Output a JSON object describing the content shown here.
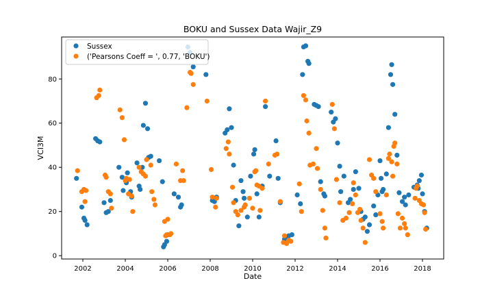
{
  "chart_data": {
    "type": "scatter",
    "title": "BOKU and Sussex Data Wajir_Z9",
    "xlabel": "Date",
    "ylabel": "VCI3M",
    "xlim": [
      2001.0,
      2019.0
    ],
    "ylim": [
      -1.5,
      99
    ],
    "x_ticks": [
      2002,
      2004,
      2006,
      2008,
      2010,
      2012,
      2014,
      2016,
      2018
    ],
    "x_tick_labels": [
      "2002",
      "2004",
      "2006",
      "2008",
      "2010",
      "2012",
      "2014",
      "2016",
      "2018"
    ],
    "y_ticks": [
      0,
      20,
      40,
      60,
      80
    ],
    "y_tick_labels": [
      "0",
      "20",
      "40",
      "60",
      "80"
    ],
    "grid": false,
    "legend_position": "top-left",
    "series": [
      {
        "name": "Sussex",
        "color": "#1f77b4",
        "points": [
          [
            2001.7,
            35
          ],
          [
            2001.95,
            22
          ],
          [
            2002.05,
            17
          ],
          [
            2002.1,
            16
          ],
          [
            2002.2,
            14
          ],
          [
            2002.6,
            53
          ],
          [
            2002.7,
            52
          ],
          [
            2002.8,
            51.5
          ],
          [
            2003.0,
            24
          ],
          [
            2003.1,
            19.5
          ],
          [
            2003.2,
            20
          ],
          [
            2003.3,
            25
          ],
          [
            2003.7,
            40
          ],
          [
            2003.85,
            35.5
          ],
          [
            2003.9,
            29.5
          ],
          [
            2004.05,
            33
          ],
          [
            2004.1,
            37.5
          ],
          [
            2004.25,
            29
          ],
          [
            2004.3,
            26.5
          ],
          [
            2004.55,
            42
          ],
          [
            2004.65,
            31.5
          ],
          [
            2004.7,
            30
          ],
          [
            2004.8,
            40
          ],
          [
            2004.85,
            59
          ],
          [
            2004.95,
            69
          ],
          [
            2005.05,
            57.5
          ],
          [
            2005.1,
            44.5
          ],
          [
            2005.2,
            45
          ],
          [
            2005.6,
            43
          ],
          [
            2005.75,
            33.5
          ],
          [
            2005.8,
            4
          ],
          [
            2005.85,
            5
          ],
          [
            2005.95,
            6.5
          ],
          [
            2006.0,
            9.5
          ],
          [
            2006.3,
            28
          ],
          [
            2006.5,
            26.5
          ],
          [
            2006.6,
            22
          ],
          [
            2006.65,
            23
          ],
          [
            2006.95,
            94.5
          ],
          [
            2007.05,
            92
          ],
          [
            2007.2,
            85.5
          ],
          [
            2007.8,
            82
          ],
          [
            2008.1,
            25
          ],
          [
            2008.2,
            24.5
          ],
          [
            2008.3,
            26.5
          ],
          [
            2008.7,
            55.5
          ],
          [
            2008.8,
            57
          ],
          [
            2008.9,
            66.5
          ],
          [
            2009.0,
            58
          ],
          [
            2009.1,
            41
          ],
          [
            2009.2,
            25
          ],
          [
            2009.35,
            13.5
          ],
          [
            2009.45,
            34
          ],
          [
            2009.55,
            29
          ],
          [
            2009.6,
            26
          ],
          [
            2009.75,
            17.5
          ],
          [
            2009.9,
            36
          ],
          [
            2010.05,
            46
          ],
          [
            2010.1,
            48
          ],
          [
            2010.2,
            28
          ],
          [
            2010.3,
            17.5
          ],
          [
            2010.45,
            31.5
          ],
          [
            2010.6,
            67.5
          ],
          [
            2010.8,
            36
          ],
          [
            2011.1,
            52
          ],
          [
            2011.2,
            35
          ],
          [
            2011.3,
            24
          ],
          [
            2011.5,
            7.5
          ],
          [
            2011.6,
            8.5
          ],
          [
            2011.7,
            9
          ],
          [
            2011.85,
            9.5
          ],
          [
            2012.1,
            27.5
          ],
          [
            2012.25,
            23.5
          ],
          [
            2012.35,
            82
          ],
          [
            2012.4,
            94.5
          ],
          [
            2012.5,
            95
          ],
          [
            2012.6,
            88
          ],
          [
            2012.65,
            87
          ],
          [
            2012.9,
            68.5
          ],
          [
            2013.0,
            68
          ],
          [
            2013.1,
            67.5
          ],
          [
            2013.2,
            33.5
          ],
          [
            2013.35,
            28
          ],
          [
            2013.4,
            27
          ],
          [
            2013.7,
            65
          ],
          [
            2013.8,
            60.5
          ],
          [
            2013.9,
            62
          ],
          [
            2014.0,
            51
          ],
          [
            2014.1,
            40.5
          ],
          [
            2014.15,
            29
          ],
          [
            2014.3,
            36
          ],
          [
            2014.5,
            24
          ],
          [
            2014.6,
            25.5
          ],
          [
            2014.75,
            30
          ],
          [
            2014.85,
            38
          ],
          [
            2015.0,
            30.5
          ],
          [
            2015.1,
            20
          ],
          [
            2015.2,
            16.5
          ],
          [
            2015.3,
            17.5
          ],
          [
            2015.4,
            11
          ],
          [
            2015.5,
            14
          ],
          [
            2015.7,
            22.5
          ],
          [
            2015.8,
            18.5
          ],
          [
            2015.9,
            27.5
          ],
          [
            2016.0,
            43
          ],
          [
            2016.05,
            35
          ],
          [
            2016.1,
            29
          ],
          [
            2016.15,
            30
          ],
          [
            2016.3,
            37
          ],
          [
            2016.4,
            58
          ],
          [
            2016.5,
            82
          ],
          [
            2016.55,
            86.5
          ],
          [
            2016.6,
            77.5
          ],
          [
            2016.7,
            64
          ],
          [
            2016.8,
            45.5
          ],
          [
            2016.9,
            28.5
          ],
          [
            2017.05,
            24.5
          ],
          [
            2017.15,
            26.5
          ],
          [
            2017.2,
            23
          ],
          [
            2017.35,
            27.5
          ],
          [
            2017.6,
            31
          ],
          [
            2017.75,
            32
          ],
          [
            2017.8,
            30.5
          ],
          [
            2017.85,
            34
          ],
          [
            2017.95,
            36.5
          ],
          [
            2018.0,
            28
          ],
          [
            2018.1,
            20
          ],
          [
            2018.2,
            12.5
          ]
        ]
      },
      {
        "name": "('Pearsons Coeff = ', 0.77, 'BOKU')",
        "color": "#ff7f0e",
        "points": [
          [
            2001.75,
            38.5
          ],
          [
            2001.95,
            29
          ],
          [
            2002.05,
            30
          ],
          [
            2002.1,
            24.5
          ],
          [
            2002.15,
            29.5
          ],
          [
            2002.65,
            71.5
          ],
          [
            2002.75,
            72.5
          ],
          [
            2002.8,
            75
          ],
          [
            2003.05,
            36.5
          ],
          [
            2003.1,
            35.5
          ],
          [
            2003.2,
            29
          ],
          [
            2003.3,
            28
          ],
          [
            2003.35,
            21.5
          ],
          [
            2003.75,
            66
          ],
          [
            2003.85,
            62.5
          ],
          [
            2003.95,
            52.5
          ],
          [
            2004.0,
            34
          ],
          [
            2004.05,
            35
          ],
          [
            2004.15,
            28
          ],
          [
            2004.2,
            34.5
          ],
          [
            2004.3,
            27
          ],
          [
            2004.35,
            20
          ],
          [
            2004.65,
            40
          ],
          [
            2004.75,
            38
          ],
          [
            2004.85,
            37
          ],
          [
            2004.95,
            36
          ],
          [
            2005.0,
            43.5
          ],
          [
            2005.2,
            41
          ],
          [
            2005.25,
            29
          ],
          [
            2005.35,
            25.5
          ],
          [
            2005.4,
            23
          ],
          [
            2005.85,
            15.5
          ],
          [
            2005.9,
            9
          ],
          [
            2005.95,
            9.5
          ],
          [
            2006.0,
            16.5
          ],
          [
            2006.1,
            9.5
          ],
          [
            2006.15,
            10
          ],
          [
            2006.4,
            41.5
          ],
          [
            2006.6,
            34
          ],
          [
            2006.7,
            38.5
          ],
          [
            2006.75,
            34
          ],
          [
            2006.9,
            67
          ],
          [
            2007.05,
            83
          ],
          [
            2007.1,
            82.5
          ],
          [
            2007.2,
            77.5
          ],
          [
            2007.85,
            70
          ],
          [
            2008.05,
            39
          ],
          [
            2008.1,
            26.5
          ],
          [
            2008.25,
            22
          ],
          [
            2008.3,
            26
          ],
          [
            2008.75,
            48.5
          ],
          [
            2008.85,
            51.5
          ],
          [
            2008.9,
            46
          ],
          [
            2009.05,
            31
          ],
          [
            2009.1,
            24
          ],
          [
            2009.2,
            20
          ],
          [
            2009.3,
            18.5
          ],
          [
            2009.45,
            20.5
          ],
          [
            2009.6,
            22
          ],
          [
            2009.65,
            23
          ],
          [
            2009.85,
            26
          ],
          [
            2010.0,
            21.5
          ],
          [
            2010.1,
            38
          ],
          [
            2010.15,
            38.5
          ],
          [
            2010.2,
            32
          ],
          [
            2010.3,
            31.5
          ],
          [
            2010.35,
            20.5
          ],
          [
            2010.45,
            30.5
          ],
          [
            2010.6,
            70
          ],
          [
            2010.75,
            41.5
          ],
          [
            2011.05,
            45.5
          ],
          [
            2011.15,
            46
          ],
          [
            2011.3,
            24.5
          ],
          [
            2011.45,
            6
          ],
          [
            2011.5,
            9
          ],
          [
            2011.6,
            5.5
          ],
          [
            2011.7,
            7
          ],
          [
            2011.8,
            6.5
          ],
          [
            2012.2,
            32.5
          ],
          [
            2012.3,
            20
          ],
          [
            2012.4,
            72.5
          ],
          [
            2012.5,
            70.5
          ],
          [
            2012.55,
            61
          ],
          [
            2012.65,
            55.5
          ],
          [
            2012.7,
            41
          ],
          [
            2012.85,
            41.5
          ],
          [
            2013.0,
            48.5
          ],
          [
            2013.05,
            39.5
          ],
          [
            2013.2,
            30
          ],
          [
            2013.3,
            20.5
          ],
          [
            2013.4,
            12.5
          ],
          [
            2013.45,
            8
          ],
          [
            2013.75,
            68.5
          ],
          [
            2013.85,
            57.5
          ],
          [
            2013.95,
            34.5
          ],
          [
            2014.1,
            24
          ],
          [
            2014.25,
            16
          ],
          [
            2014.4,
            17
          ],
          [
            2014.55,
            19.5
          ],
          [
            2014.7,
            23.5
          ],
          [
            2014.75,
            33
          ],
          [
            2014.85,
            27.5
          ],
          [
            2014.95,
            19.5
          ],
          [
            2015.05,
            21
          ],
          [
            2015.1,
            16
          ],
          [
            2015.2,
            12.5
          ],
          [
            2015.3,
            6
          ],
          [
            2015.5,
            43.5
          ],
          [
            2015.6,
            36.5
          ],
          [
            2015.7,
            35
          ],
          [
            2015.8,
            29
          ],
          [
            2016.0,
            19
          ],
          [
            2016.1,
            15.5
          ],
          [
            2016.15,
            12.5
          ],
          [
            2016.3,
            27.5
          ],
          [
            2016.4,
            44
          ],
          [
            2016.45,
            46
          ],
          [
            2016.55,
            42.5
          ],
          [
            2016.6,
            36
          ],
          [
            2016.65,
            49.5
          ],
          [
            2016.7,
            51
          ],
          [
            2016.8,
            41.5
          ],
          [
            2016.85,
            19
          ],
          [
            2016.95,
            12.5
          ],
          [
            2017.05,
            17
          ],
          [
            2017.15,
            14.5
          ],
          [
            2017.2,
            12.5
          ],
          [
            2017.3,
            9.5
          ],
          [
            2017.65,
            26
          ],
          [
            2017.7,
            30.5
          ],
          [
            2017.75,
            31.5
          ],
          [
            2017.85,
            25
          ],
          [
            2017.95,
            23.5
          ],
          [
            2018.05,
            23
          ],
          [
            2018.1,
            19.5
          ],
          [
            2018.15,
            12
          ]
        ]
      }
    ]
  }
}
